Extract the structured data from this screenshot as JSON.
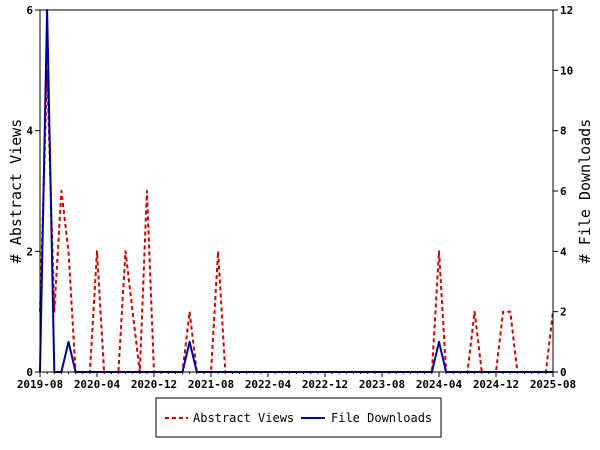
{
  "chart_data": {
    "type": "line",
    "ylabel_left": "# Abstract Views",
    "ylabel_right": "# File Downloads",
    "x_ticks": [
      "2019-08",
      "2020-04",
      "2020-12",
      "2021-08",
      "2022-04",
      "2022-12",
      "2023-08",
      "2024-04",
      "2024-12",
      "2025-08"
    ],
    "ylim_left": [
      0,
      6
    ],
    "ylim_right": [
      0,
      12
    ],
    "y_ticks_left": [
      "0",
      "2",
      "4",
      "6"
    ],
    "y_ticks_right": [
      "0",
      "2",
      "4",
      "6",
      "8",
      "10",
      "12"
    ],
    "grid": false,
    "legend_position": "bottom",
    "series": [
      {
        "name": "Abstract Views",
        "axis": "left",
        "color": "#cc0000",
        "style": "dashed",
        "points": [
          [
            "2019-08",
            1
          ],
          [
            "2019-09",
            5
          ],
          [
            "2019-10",
            1
          ],
          [
            "2019-11",
            3
          ],
          [
            "2019-12",
            2
          ],
          [
            "2020-01",
            0
          ],
          [
            "2020-02",
            0
          ],
          [
            "2020-03",
            0
          ],
          [
            "2020-04",
            2
          ],
          [
            "2020-05",
            0
          ],
          [
            "2020-06",
            0
          ],
          [
            "2020-07",
            0
          ],
          [
            "2020-08",
            2
          ],
          [
            "2020-09",
            1
          ],
          [
            "2020-10",
            0
          ],
          [
            "2020-11",
            3
          ],
          [
            "2020-12",
            0
          ],
          [
            "2021-01",
            0
          ],
          [
            "2021-02",
            0
          ],
          [
            "2021-03",
            0
          ],
          [
            "2021-04",
            0
          ],
          [
            "2021-05",
            1
          ],
          [
            "2021-06",
            0
          ],
          [
            "2021-07",
            0
          ],
          [
            "2021-08",
            0
          ],
          [
            "2021-09",
            2
          ],
          [
            "2021-10",
            0
          ],
          [
            "2024-02",
            0
          ],
          [
            "2024-03",
            0
          ],
          [
            "2024-04",
            2
          ],
          [
            "2024-05",
            0
          ],
          [
            "2024-06",
            0
          ],
          [
            "2024-07",
            0
          ],
          [
            "2024-08",
            0
          ],
          [
            "2024-09",
            1
          ],
          [
            "2024-10",
            0
          ],
          [
            "2024-11",
            0
          ],
          [
            "2024-12",
            0
          ],
          [
            "2025-01",
            1
          ],
          [
            "2025-02",
            1
          ],
          [
            "2025-03",
            0
          ],
          [
            "2025-04",
            0
          ],
          [
            "2025-05",
            0
          ],
          [
            "2025-06",
            0
          ],
          [
            "2025-07",
            0
          ],
          [
            "2025-08",
            1
          ]
        ]
      },
      {
        "name": "File Downloads",
        "axis": "right",
        "color": "#000099",
        "style": "solid",
        "points": [
          [
            "2019-08",
            0
          ],
          [
            "2019-09",
            12
          ],
          [
            "2019-10",
            0
          ],
          [
            "2019-11",
            0
          ],
          [
            "2019-12",
            1
          ],
          [
            "2020-01",
            0
          ],
          [
            "2021-04",
            0
          ],
          [
            "2021-05",
            1
          ],
          [
            "2021-06",
            0
          ],
          [
            "2024-03",
            0
          ],
          [
            "2024-04",
            1
          ],
          [
            "2024-05",
            0
          ],
          [
            "2025-08",
            0
          ]
        ]
      }
    ]
  }
}
